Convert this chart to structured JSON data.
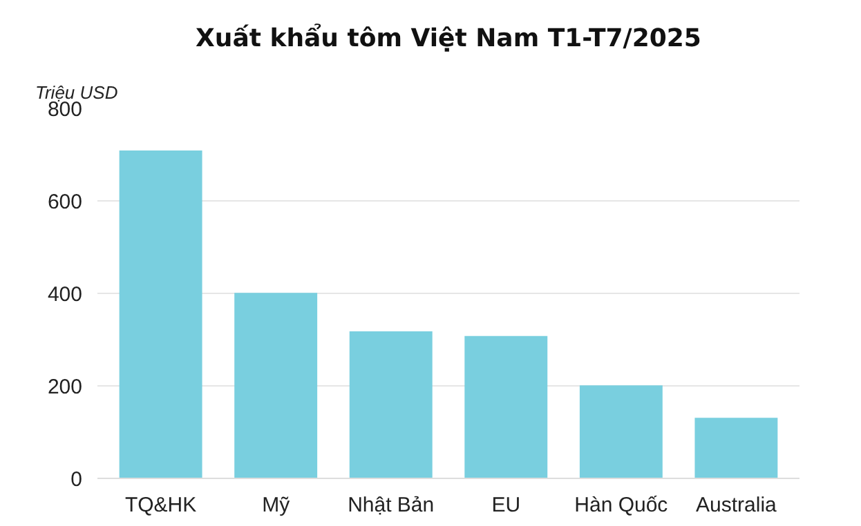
{
  "chart_data": {
    "type": "bar",
    "title": "Xuất khẩu tôm Việt Nam T1-T7/2025",
    "ylabel": "Triệu USD",
    "categories": [
      "TQ&HK",
      "Mỹ",
      "Nhật Bản",
      "EU",
      "Hàn Quốc",
      "Australia"
    ],
    "values": [
      709,
      401,
      318,
      308,
      201,
      131
    ],
    "color": "#79cfdf",
    "ylim": [
      0,
      800
    ],
    "yticks": [
      0,
      200,
      400,
      600,
      800
    ],
    "grid": "y"
  }
}
